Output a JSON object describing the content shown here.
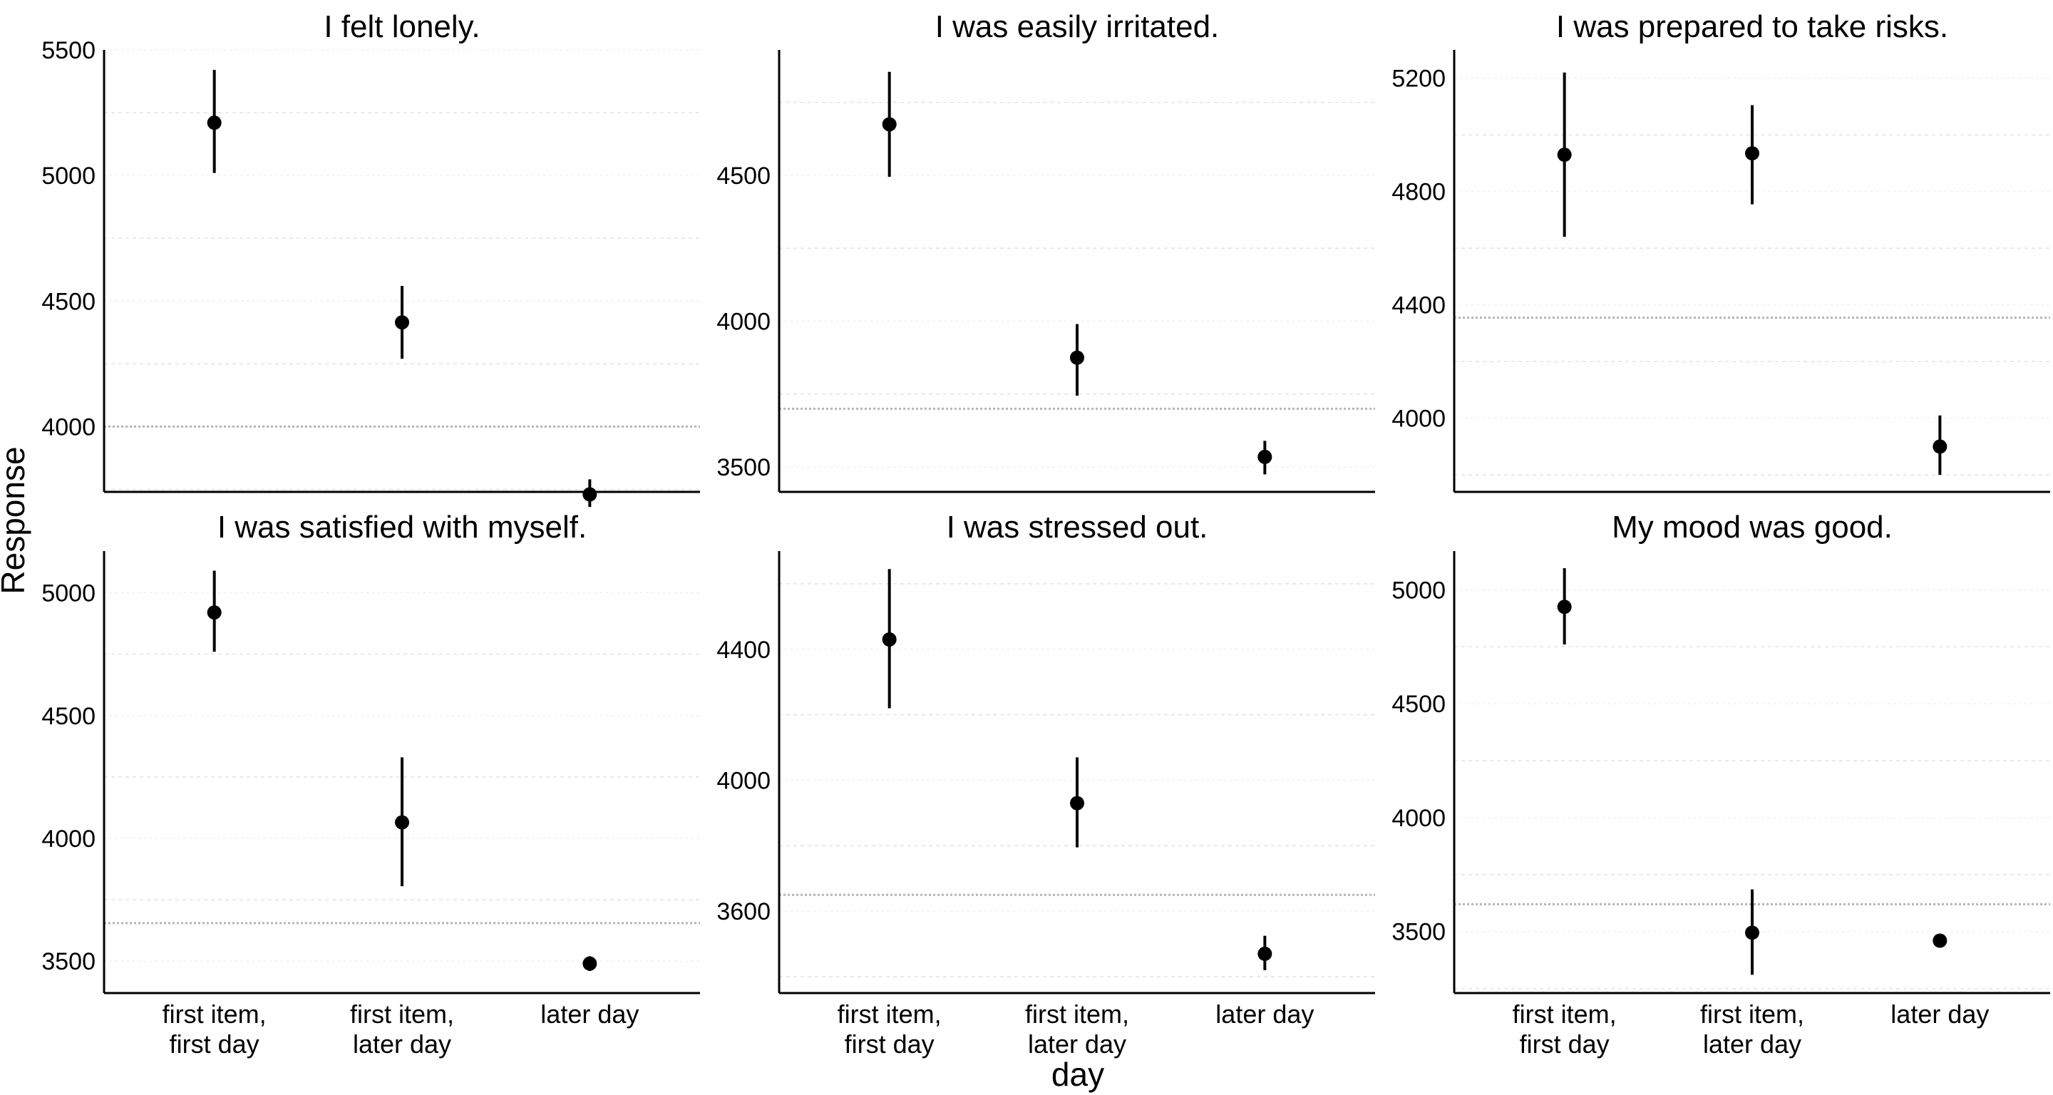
{
  "chart_data": {
    "type": "scatter",
    "ylabel": "Response",
    "xlabel": "day",
    "categories": [
      [
        "first item,",
        "first day"
      ],
      [
        "first item,",
        "later day"
      ],
      [
        "later day"
      ]
    ],
    "panels": [
      {
        "title": "I felt lonely.",
        "ylim": [
          3740,
          5500
        ],
        "major_ticks": [
          4000,
          4500,
          5000,
          5500
        ],
        "minor_grid": [
          3750,
          4250,
          4750,
          5250
        ],
        "reference_line": 4000,
        "points": [
          {
            "mean": 5210,
            "low": 5010,
            "high": 5420
          },
          {
            "mean": 4415,
            "low": 4270,
            "high": 4560
          },
          {
            "mean": 3730,
            "low": 3680,
            "high": 3790
          }
        ]
      },
      {
        "title": "I was easily irritated.",
        "ylim": [
          3415,
          4930
        ],
        "major_ticks": [
          3500,
          4000,
          4500
        ],
        "minor_grid": [
          3750,
          4250,
          4750
        ],
        "reference_line": 3700,
        "points": [
          {
            "mean": 4675,
            "low": 4495,
            "high": 4855
          },
          {
            "mean": 3875,
            "low": 3745,
            "high": 3990
          },
          {
            "mean": 3535,
            "low": 3475,
            "high": 3590
          }
        ]
      },
      {
        "title": "I was prepared to take risks.",
        "ylim": [
          3740,
          5300
        ],
        "major_ticks": [
          4000,
          4400,
          4800,
          5200
        ],
        "minor_grid": [
          3800,
          4200,
          4600,
          5000
        ],
        "reference_line": 4355,
        "points": [
          {
            "mean": 4930,
            "low": 4640,
            "high": 5220
          },
          {
            "mean": 4935,
            "low": 4755,
            "high": 5105
          },
          {
            "mean": 3900,
            "low": 3800,
            "high": 4010
          }
        ]
      },
      {
        "title": "I was satisfied with myself.",
        "ylim": [
          3370,
          5170
        ],
        "major_ticks": [
          3500,
          4000,
          4500,
          5000
        ],
        "minor_grid": [
          3750,
          4250,
          4750
        ],
        "reference_line": 3655,
        "points": [
          {
            "mean": 4920,
            "low": 4760,
            "high": 5090
          },
          {
            "mean": 4065,
            "low": 3805,
            "high": 4330
          },
          {
            "mean": 3490,
            "low": 3460,
            "high": 3520
          }
        ]
      },
      {
        "title": "I was stressed out.",
        "ylim": [
          3350,
          4700
        ],
        "major_ticks": [
          3600,
          4000,
          4400
        ],
        "minor_grid": [
          3400,
          3800,
          4200,
          4600
        ],
        "reference_line": 3650,
        "points": [
          {
            "mean": 4430,
            "low": 4220,
            "high": 4645
          },
          {
            "mean": 3930,
            "low": 3795,
            "high": 4070
          },
          {
            "mean": 3470,
            "low": 3420,
            "high": 3525
          }
        ]
      },
      {
        "title": "My mood was good.",
        "ylim": [
          3230,
          5170
        ],
        "major_ticks": [
          3500,
          4000,
          4500,
          5000
        ],
        "minor_grid": [
          3250,
          3750,
          4250,
          4750
        ],
        "reference_line": 3620,
        "points": [
          {
            "mean": 4925,
            "low": 4760,
            "high": 5095
          },
          {
            "mean": 3495,
            "low": 3310,
            "high": 3685
          },
          {
            "mean": 3460,
            "low": 3435,
            "high": 3490
          }
        ]
      }
    ]
  }
}
